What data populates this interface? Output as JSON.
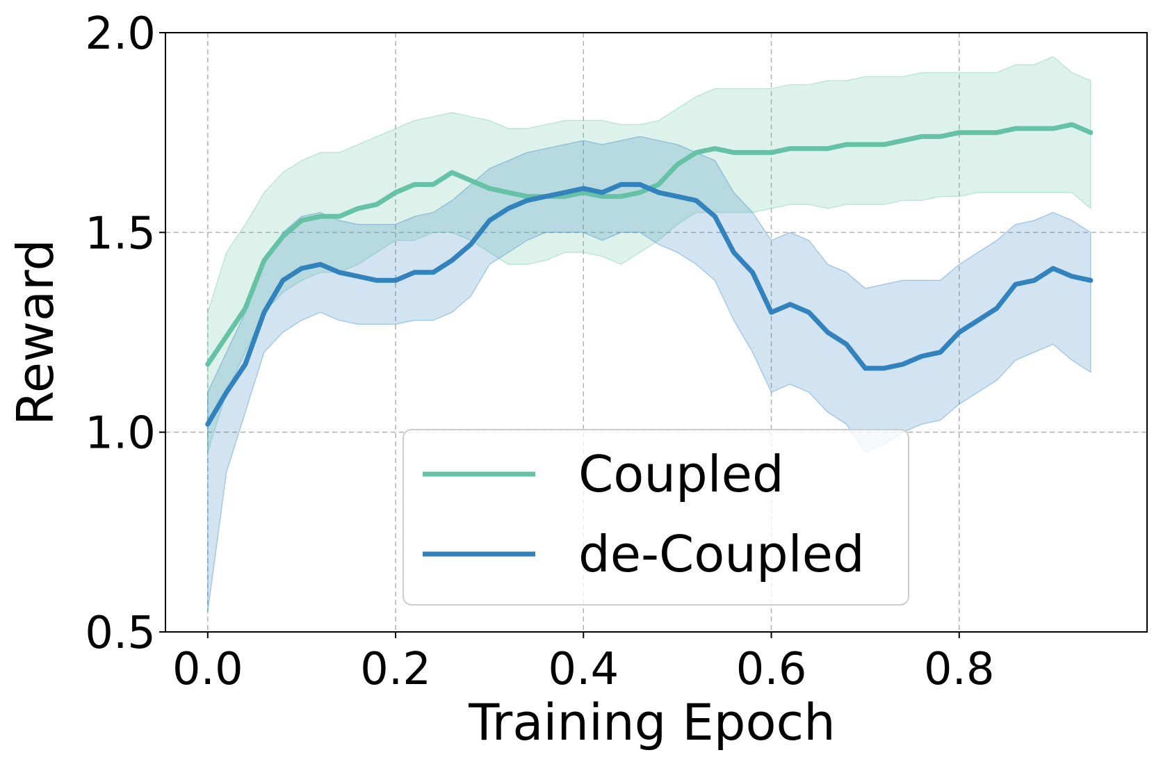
{
  "chart_data": {
    "type": "line",
    "xlabel": "Training Epoch",
    "ylabel": "Reward",
    "xlim": [
      -0.045,
      1.0
    ],
    "ylim": [
      0.5,
      2.0
    ],
    "xticks": [
      0.0,
      0.2,
      0.4,
      0.6,
      0.8
    ],
    "xtick_labels": [
      "0.0",
      "0.2",
      "0.4",
      "0.6",
      "0.8"
    ],
    "yticks": [
      0.5,
      1.0,
      1.5,
      2.0
    ],
    "ytick_labels": [
      "0.5",
      "1.0",
      "1.5",
      "2.0"
    ],
    "grid": true,
    "legend_position": "lower-center",
    "series": [
      {
        "name": "Coupled",
        "color": "#66c2a5",
        "x": [
          0.0,
          0.02,
          0.04,
          0.06,
          0.08,
          0.1,
          0.12,
          0.14,
          0.16,
          0.18,
          0.2,
          0.22,
          0.24,
          0.26,
          0.28,
          0.3,
          0.32,
          0.34,
          0.36,
          0.38,
          0.4,
          0.42,
          0.44,
          0.46,
          0.48,
          0.5,
          0.52,
          0.54,
          0.56,
          0.58,
          0.6,
          0.62,
          0.64,
          0.66,
          0.68,
          0.7,
          0.72,
          0.74,
          0.76,
          0.78,
          0.8,
          0.82,
          0.84,
          0.86,
          0.88,
          0.9,
          0.92,
          0.94
        ],
        "y": [
          1.17,
          1.24,
          1.31,
          1.43,
          1.49,
          1.53,
          1.54,
          1.54,
          1.56,
          1.57,
          1.6,
          1.62,
          1.62,
          1.65,
          1.63,
          1.61,
          1.6,
          1.59,
          1.59,
          1.59,
          1.6,
          1.59,
          1.59,
          1.6,
          1.62,
          1.67,
          1.7,
          1.71,
          1.7,
          1.7,
          1.7,
          1.71,
          1.71,
          1.71,
          1.72,
          1.72,
          1.72,
          1.73,
          1.74,
          1.74,
          1.75,
          1.75,
          1.75,
          1.76,
          1.76,
          1.76,
          1.77,
          1.75
        ],
        "band_low": [
          0.95,
          1.1,
          1.2,
          1.3,
          1.35,
          1.38,
          1.4,
          1.4,
          1.42,
          1.45,
          1.48,
          1.48,
          1.5,
          1.5,
          1.48,
          1.45,
          1.42,
          1.42,
          1.43,
          1.45,
          1.45,
          1.44,
          1.42,
          1.45,
          1.48,
          1.52,
          1.55,
          1.55,
          1.55,
          1.55,
          1.56,
          1.57,
          1.57,
          1.56,
          1.57,
          1.57,
          1.57,
          1.58,
          1.58,
          1.59,
          1.59,
          1.6,
          1.6,
          1.6,
          1.6,
          1.6,
          1.6,
          1.56
        ],
        "band_high": [
          1.3,
          1.45,
          1.52,
          1.6,
          1.65,
          1.68,
          1.7,
          1.7,
          1.72,
          1.74,
          1.76,
          1.78,
          1.79,
          1.8,
          1.79,
          1.78,
          1.76,
          1.76,
          1.77,
          1.78,
          1.78,
          1.78,
          1.77,
          1.77,
          1.78,
          1.81,
          1.84,
          1.86,
          1.86,
          1.86,
          1.86,
          1.87,
          1.87,
          1.88,
          1.88,
          1.89,
          1.89,
          1.89,
          1.9,
          1.9,
          1.9,
          1.9,
          1.9,
          1.92,
          1.92,
          1.94,
          1.9,
          1.88
        ]
      },
      {
        "name": "de-Coupled",
        "color": "#3182bd",
        "x": [
          0.0,
          0.02,
          0.04,
          0.06,
          0.08,
          0.1,
          0.12,
          0.14,
          0.16,
          0.18,
          0.2,
          0.22,
          0.24,
          0.26,
          0.28,
          0.3,
          0.32,
          0.34,
          0.36,
          0.38,
          0.4,
          0.42,
          0.44,
          0.46,
          0.48,
          0.5,
          0.52,
          0.54,
          0.56,
          0.58,
          0.6,
          0.62,
          0.64,
          0.66,
          0.68,
          0.7,
          0.72,
          0.74,
          0.76,
          0.78,
          0.8,
          0.82,
          0.84,
          0.86,
          0.88,
          0.9,
          0.92,
          0.94
        ],
        "y": [
          1.02,
          1.1,
          1.17,
          1.3,
          1.38,
          1.41,
          1.42,
          1.4,
          1.39,
          1.38,
          1.38,
          1.4,
          1.4,
          1.43,
          1.47,
          1.53,
          1.56,
          1.58,
          1.59,
          1.6,
          1.61,
          1.6,
          1.62,
          1.62,
          1.6,
          1.59,
          1.58,
          1.54,
          1.45,
          1.4,
          1.3,
          1.32,
          1.3,
          1.25,
          1.22,
          1.16,
          1.16,
          1.17,
          1.19,
          1.2,
          1.25,
          1.28,
          1.31,
          1.37,
          1.38,
          1.41,
          1.39,
          1.38
        ],
        "band_low": [
          0.55,
          0.9,
          1.05,
          1.2,
          1.25,
          1.28,
          1.3,
          1.28,
          1.27,
          1.27,
          1.27,
          1.28,
          1.28,
          1.3,
          1.34,
          1.42,
          1.45,
          1.48,
          1.5,
          1.5,
          1.5,
          1.48,
          1.5,
          1.5,
          1.47,
          1.45,
          1.42,
          1.38,
          1.28,
          1.2,
          1.1,
          1.12,
          1.1,
          1.05,
          1.02,
          0.95,
          0.97,
          1.0,
          1.02,
          1.03,
          1.07,
          1.1,
          1.13,
          1.18,
          1.2,
          1.22,
          1.18,
          1.15
        ],
        "band_high": [
          1.1,
          1.2,
          1.3,
          1.42,
          1.5,
          1.54,
          1.55,
          1.53,
          1.52,
          1.52,
          1.52,
          1.54,
          1.55,
          1.58,
          1.62,
          1.66,
          1.68,
          1.7,
          1.71,
          1.72,
          1.73,
          1.72,
          1.73,
          1.74,
          1.73,
          1.72,
          1.7,
          1.68,
          1.6,
          1.55,
          1.48,
          1.5,
          1.48,
          1.42,
          1.4,
          1.36,
          1.37,
          1.38,
          1.38,
          1.38,
          1.42,
          1.45,
          1.48,
          1.52,
          1.53,
          1.55,
          1.53,
          1.5
        ]
      }
    ]
  }
}
